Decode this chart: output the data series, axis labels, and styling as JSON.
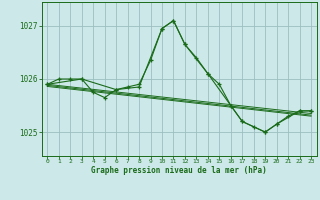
{
  "title": "Graphe pression niveau de la mer (hPa)",
  "bg_color": "#cce8e8",
  "grid_color": "#9bbfbf",
  "line_color": "#1a6b1a",
  "xlim": [
    -0.5,
    23.5
  ],
  "ylim": [
    1024.55,
    1027.45
  ],
  "yticks": [
    1025,
    1026,
    1027
  ],
  "xticks": [
    0,
    1,
    2,
    3,
    4,
    5,
    6,
    7,
    8,
    9,
    10,
    11,
    12,
    13,
    14,
    15,
    16,
    17,
    18,
    19,
    20,
    21,
    22,
    23
  ],
  "series": {
    "line_main": {
      "x": [
        0,
        1,
        2,
        3,
        4,
        5,
        6,
        7,
        8,
        9,
        10,
        11,
        12,
        13,
        14,
        15,
        16,
        17,
        18,
        19,
        20,
        21,
        22,
        23
      ],
      "y": [
        1025.9,
        1026.0,
        1026.0,
        1026.0,
        1025.75,
        1025.65,
        1025.8,
        1025.85,
        1025.9,
        1026.35,
        1026.95,
        1027.1,
        1026.65,
        1026.4,
        1026.1,
        1025.9,
        1025.5,
        1025.2,
        1025.1,
        1025.0,
        1025.15,
        1025.3,
        1025.4,
        1025.4
      ]
    },
    "line_coarse": {
      "x": [
        0,
        3,
        6,
        8,
        10,
        11,
        12,
        14,
        16,
        17,
        19,
        20,
        22,
        23
      ],
      "y": [
        1025.9,
        1026.0,
        1025.8,
        1025.85,
        1026.95,
        1027.1,
        1026.65,
        1026.1,
        1025.5,
        1025.2,
        1025.0,
        1025.15,
        1025.4,
        1025.4
      ]
    },
    "line_diagonal1": {
      "x": [
        0,
        23
      ],
      "y": [
        1025.9,
        1025.35
      ]
    },
    "line_diagonal2": {
      "x": [
        0,
        23
      ],
      "y": [
        1025.88,
        1025.32
      ]
    },
    "line_diagonal3": {
      "x": [
        0,
        23
      ],
      "y": [
        1025.86,
        1025.3
      ]
    }
  }
}
